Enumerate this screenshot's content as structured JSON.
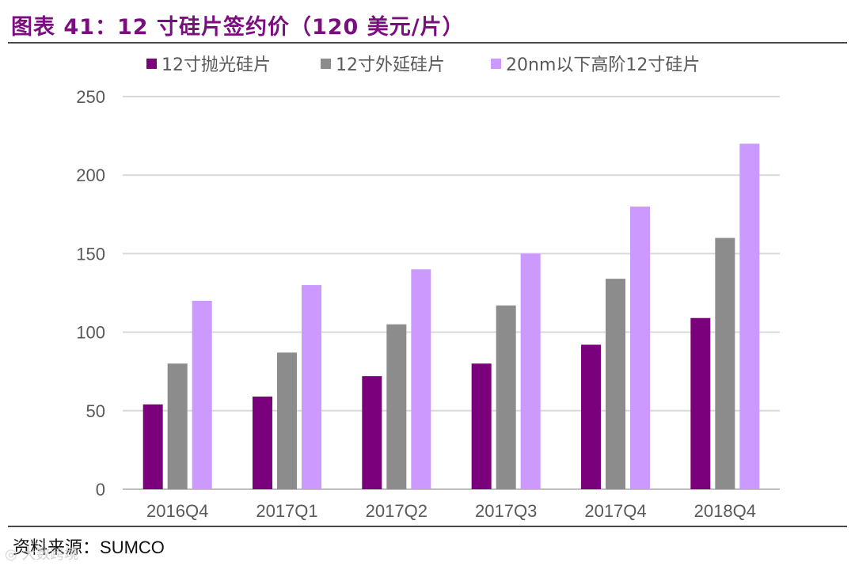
{
  "figure": {
    "title": "图表 41：12 寸硅片签约价（120 美元/片）",
    "source_label": "资料来源：",
    "source_value": "SUMCO",
    "watermark": "◎ 大数跨境"
  },
  "chart_data": {
    "type": "bar",
    "title": "",
    "xlabel": "",
    "ylabel": "",
    "categories": [
      "2016Q4",
      "2017Q1",
      "2017Q2",
      "2017Q3",
      "2017Q4",
      "2018Q4"
    ],
    "ylim": [
      0,
      250
    ],
    "yticks": [
      0,
      50,
      100,
      150,
      200,
      250
    ],
    "grid": true,
    "legend_position": "top",
    "series": [
      {
        "name": "12寸抛光硅片",
        "color": "#7b007b",
        "values": [
          54,
          59,
          72,
          80,
          92,
          109
        ]
      },
      {
        "name": "12寸外延硅片",
        "color": "#8c8c8c",
        "values": [
          80,
          87,
          105,
          117,
          134,
          160
        ]
      },
      {
        "name": "20nm以下高阶12寸硅片",
        "color": "#cc99ff",
        "values": [
          120,
          130,
          140,
          150,
          180,
          220
        ]
      }
    ]
  }
}
